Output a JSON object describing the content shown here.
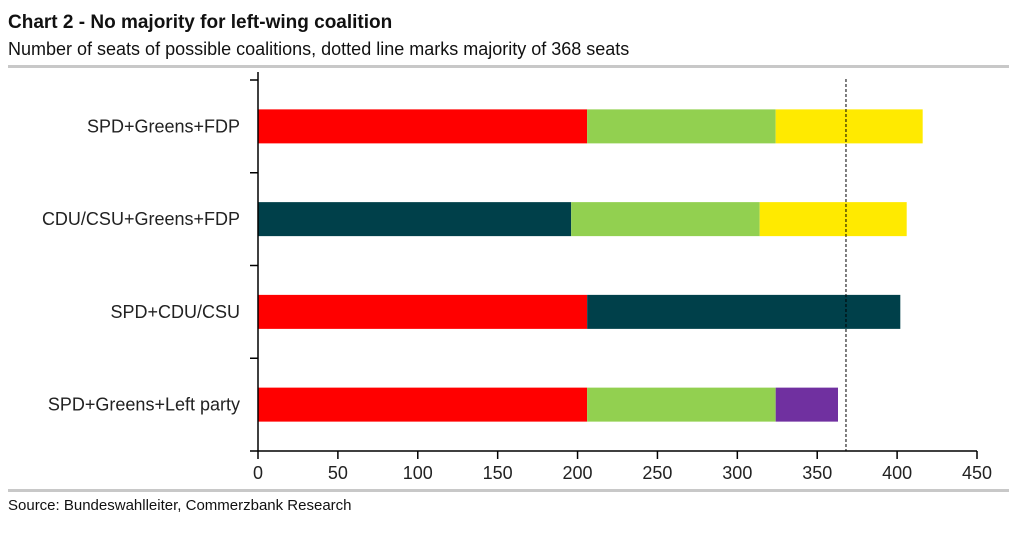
{
  "chart_data": {
    "type": "bar",
    "orientation": "horizontal",
    "stacked": true,
    "title": "Chart 2 - No majority for left-wing coalition",
    "subtitle": "Number of seats of possible coalitions, dotted line marks majority of 368 seats",
    "source": "Source: Bundeswahlleiter, Commerzbank Research",
    "categories": [
      "SPD+Greens+FDP",
      "CDU/CSU+Greens+FDP",
      "SPD+CDU/CSU",
      "SPD+Greens+Left party"
    ],
    "series": [
      {
        "name": "SPD",
        "color": "#ff0000",
        "values": [
          206,
          0,
          206,
          206
        ]
      },
      {
        "name": "CDU/CSU",
        "color": "#00404a",
        "values": [
          0,
          196,
          196,
          0
        ]
      },
      {
        "name": "Greens",
        "color": "#92d050",
        "values": [
          118,
          118,
          0,
          118
        ]
      },
      {
        "name": "FDP",
        "color": "#ffea00",
        "values": [
          92,
          92,
          0,
          0
        ]
      },
      {
        "name": "Left party",
        "color": "#7030a0",
        "values": [
          0,
          0,
          0,
          39
        ]
      }
    ],
    "xlim": [
      0,
      450
    ],
    "xticks": [
      "0",
      "50",
      "100",
      "150",
      "200",
      "250",
      "300",
      "350",
      "400",
      "450"
    ],
    "majority_line": 368,
    "grid": false,
    "legend": "none"
  }
}
